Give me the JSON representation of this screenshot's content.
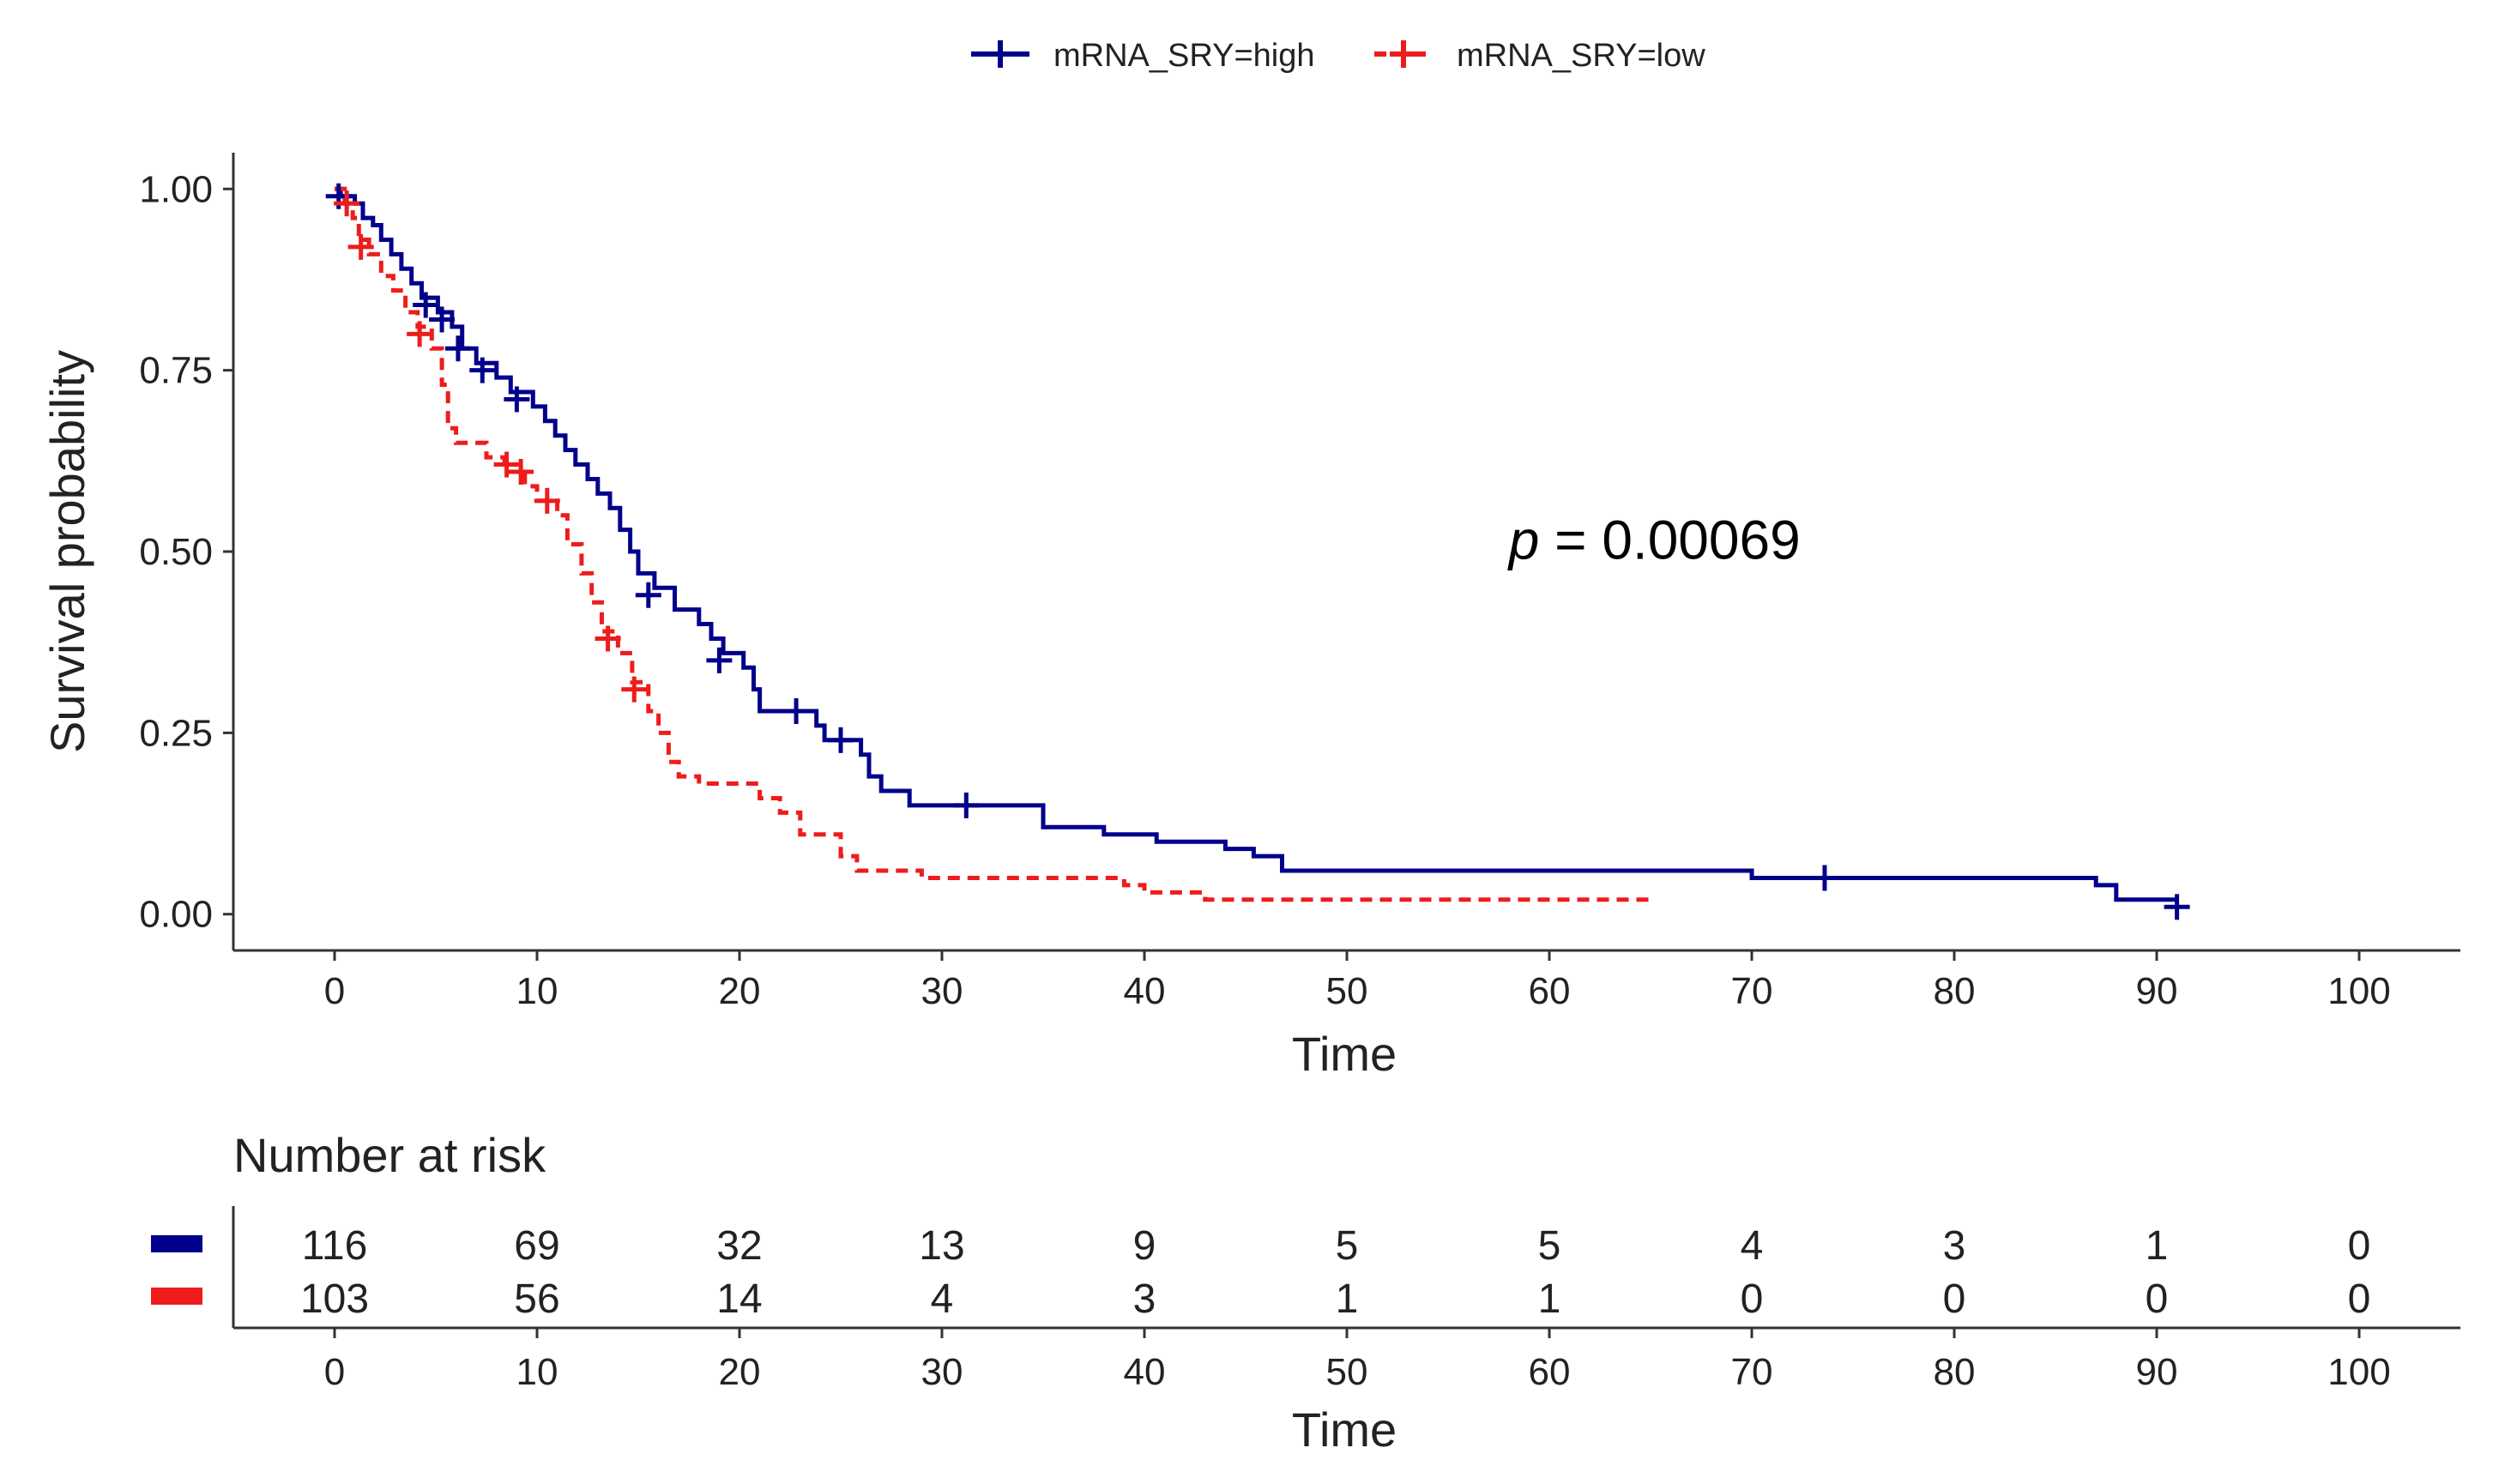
{
  "chart_data": {
    "type": "line",
    "subtype": "kaplan-meier",
    "xlabel": "Time",
    "ylabel": "Survival probability",
    "xlim": [
      -5,
      105
    ],
    "ylim": [
      -0.05,
      1.05
    ],
    "x_ticks": [
      0,
      10,
      20,
      30,
      40,
      50,
      60,
      70,
      80,
      90,
      100
    ],
    "y_ticks": [
      0,
      0.25,
      0.5,
      0.75,
      1.0
    ],
    "y_tick_labels": [
      "0.00",
      "0.25",
      "0.50",
      "0.75",
      "1.00"
    ],
    "legend_position": "top",
    "annotation": {
      "prefix": "p",
      "text": " = 0.00069",
      "x": 58,
      "y": 0.49
    },
    "series": [
      {
        "name": "mRNA_SRY=high",
        "color": "#00008B",
        "dash": "solid",
        "steps": [
          [
            0,
            1.0
          ],
          [
            0.3,
            0.99
          ],
          [
            1.0,
            0.98
          ],
          [
            1.4,
            0.96
          ],
          [
            1.9,
            0.95
          ],
          [
            2.3,
            0.93
          ],
          [
            2.8,
            0.91
          ],
          [
            3.3,
            0.89
          ],
          [
            3.8,
            0.87
          ],
          [
            4.3,
            0.85
          ],
          [
            5.1,
            0.83
          ],
          [
            5.8,
            0.81
          ],
          [
            6.3,
            0.78
          ],
          [
            7.0,
            0.76
          ],
          [
            8.0,
            0.74
          ],
          [
            8.7,
            0.72
          ],
          [
            9.8,
            0.7
          ],
          [
            10.4,
            0.68
          ],
          [
            10.9,
            0.66
          ],
          [
            11.4,
            0.64
          ],
          [
            11.9,
            0.62
          ],
          [
            12.5,
            0.6
          ],
          [
            13.0,
            0.58
          ],
          [
            13.6,
            0.56
          ],
          [
            14.1,
            0.53
          ],
          [
            14.6,
            0.5
          ],
          [
            15.0,
            0.47
          ],
          [
            15.8,
            0.45
          ],
          [
            16.8,
            0.42
          ],
          [
            18.0,
            0.4
          ],
          [
            18.6,
            0.38
          ],
          [
            19.2,
            0.36
          ],
          [
            20.2,
            0.34
          ],
          [
            20.7,
            0.31
          ],
          [
            21.0,
            0.28
          ],
          [
            23.8,
            0.26
          ],
          [
            24.2,
            0.24
          ],
          [
            26.0,
            0.22
          ],
          [
            26.4,
            0.19
          ],
          [
            27.0,
            0.17
          ],
          [
            28.4,
            0.15
          ],
          [
            35.0,
            0.12
          ],
          [
            38.0,
            0.11
          ],
          [
            40.6,
            0.1
          ],
          [
            44.0,
            0.09
          ],
          [
            45.4,
            0.08
          ],
          [
            46.8,
            0.06
          ],
          [
            70.0,
            0.05
          ],
          [
            87.0,
            0.04
          ],
          [
            88.0,
            0.02
          ],
          [
            91.0,
            0.02
          ]
        ],
        "censors": [
          [
            0.2,
            0.99
          ],
          [
            4.5,
            0.84
          ],
          [
            5.3,
            0.82
          ],
          [
            6.1,
            0.78
          ],
          [
            7.3,
            0.75
          ],
          [
            9.0,
            0.71
          ],
          [
            15.5,
            0.44
          ],
          [
            19.0,
            0.35
          ],
          [
            22.8,
            0.28
          ],
          [
            25.0,
            0.24
          ],
          [
            31.2,
            0.15
          ],
          [
            73.6,
            0.05
          ],
          [
            91.0,
            0.01
          ]
        ]
      },
      {
        "name": "mRNA_SRY=low",
        "color": "#EE1C1C",
        "dash": "dashed",
        "steps": [
          [
            0,
            1.0
          ],
          [
            0.5,
            0.98
          ],
          [
            0.9,
            0.96
          ],
          [
            1.2,
            0.93
          ],
          [
            1.7,
            0.91
          ],
          [
            2.3,
            0.88
          ],
          [
            2.9,
            0.86
          ],
          [
            3.5,
            0.83
          ],
          [
            4.1,
            0.81
          ],
          [
            4.8,
            0.78
          ],
          [
            5.3,
            0.73
          ],
          [
            5.6,
            0.67
          ],
          [
            6.0,
            0.65
          ],
          [
            7.5,
            0.63
          ],
          [
            8.4,
            0.61
          ],
          [
            9.4,
            0.59
          ],
          [
            10.0,
            0.57
          ],
          [
            11.0,
            0.55
          ],
          [
            11.5,
            0.51
          ],
          [
            12.2,
            0.47
          ],
          [
            12.7,
            0.43
          ],
          [
            13.2,
            0.39
          ],
          [
            14.0,
            0.36
          ],
          [
            14.7,
            0.32
          ],
          [
            15.5,
            0.28
          ],
          [
            16.0,
            0.25
          ],
          [
            16.5,
            0.21
          ],
          [
            17.0,
            0.19
          ],
          [
            18.0,
            0.18
          ],
          [
            21.0,
            0.16
          ],
          [
            22.0,
            0.14
          ],
          [
            23.0,
            0.11
          ],
          [
            25.0,
            0.08
          ],
          [
            25.8,
            0.06
          ],
          [
            29.0,
            0.05
          ],
          [
            39.0,
            0.04
          ],
          [
            40.0,
            0.03
          ],
          [
            43.0,
            0.02
          ],
          [
            65.2,
            0.02
          ]
        ],
        "censors": [
          [
            0.6,
            0.98
          ],
          [
            1.3,
            0.92
          ],
          [
            4.2,
            0.8
          ],
          [
            8.5,
            0.62
          ],
          [
            9.2,
            0.61
          ],
          [
            10.5,
            0.57
          ],
          [
            13.5,
            0.38
          ],
          [
            14.8,
            0.31
          ]
        ]
      }
    ],
    "risk_table": {
      "title": "Number at risk",
      "xlabel": "Time",
      "times": [
        0,
        10,
        20,
        30,
        40,
        50,
        60,
        70,
        80,
        90,
        100
      ],
      "rows": [
        {
          "series": "mRNA_SRY=high",
          "color": "#00008B",
          "counts": [
            116,
            69,
            32,
            13,
            9,
            5,
            5,
            4,
            3,
            1,
            0
          ]
        },
        {
          "series": "mRNA_SRY=low",
          "color": "#EE1C1C",
          "counts": [
            103,
            56,
            14,
            4,
            3,
            1,
            1,
            0,
            0,
            0,
            0
          ]
        }
      ]
    }
  }
}
